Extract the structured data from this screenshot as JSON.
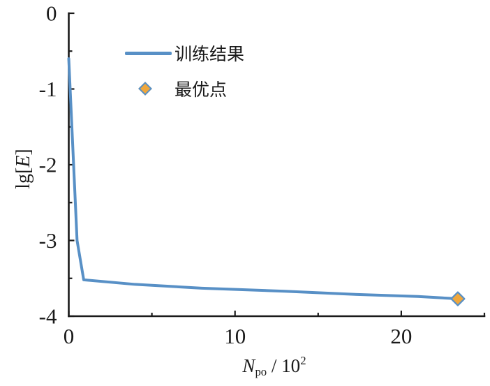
{
  "chart_data": {
    "type": "line",
    "title": "",
    "xlabel_text": "Npo / 10^2",
    "xlabel_parts": {
      "variable": "N",
      "subscript": "po",
      "divider": " / 10",
      "exponent": "2"
    },
    "ylabel_text": "lg[E]",
    "ylabel_parts": {
      "prefix": "lg[",
      "variable": "E",
      "suffix": "]"
    },
    "xlim": [
      0,
      25
    ],
    "ylim": [
      -4,
      0
    ],
    "x_major_ticks": [
      0,
      10,
      20
    ],
    "x_minor_ticks": [
      5,
      15,
      25
    ],
    "y_major_ticks": [
      0,
      -1,
      -2,
      -3,
      -4
    ],
    "y_minor_ticks": [
      -0.5,
      -1.5,
      -2.5,
      -3.5
    ],
    "grid": false,
    "axis_color": "#1a1a1a",
    "legend": {
      "position": "upper-left-inside",
      "items": [
        "训练结果",
        "最优点"
      ]
    },
    "series": [
      {
        "name": "训练结果",
        "type": "line",
        "color": "#5890C6",
        "stroke_width": 4,
        "points": [
          [
            0,
            -0.6
          ],
          [
            0.5,
            -3.0
          ],
          [
            0.9,
            -3.52
          ],
          [
            4,
            -3.58
          ],
          [
            8,
            -3.63
          ],
          [
            13,
            -3.67
          ],
          [
            17,
            -3.71
          ],
          [
            21,
            -3.74
          ],
          [
            23.4,
            -3.77
          ]
        ]
      },
      {
        "name": "最优点",
        "type": "scatter",
        "marker": "diamond",
        "marker_fill": "#F0A73C",
        "marker_stroke": "#5890C6",
        "points": [
          [
            23.4,
            -3.77
          ]
        ]
      }
    ]
  }
}
